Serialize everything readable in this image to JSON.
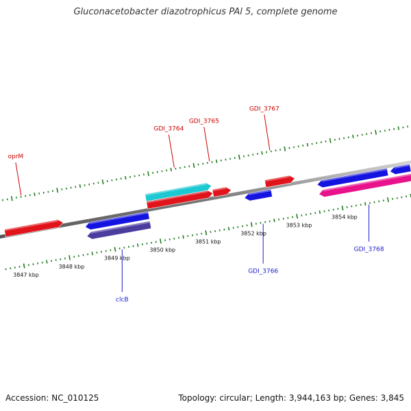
{
  "title": "Gluconacetobacter diazotrophicus PAl 5, complete genome",
  "accession": "Accession: NC_010125",
  "summary": "Topology: circular; Length: 3,944,163 bp; Genes: 3,845",
  "colors": {
    "backbone": "#8a8a8a",
    "tick_green": "#1f7a1f",
    "label_red": "#cc0000",
    "label_blue": "#1a1acc"
  },
  "chart_data": {
    "type": "genome-map",
    "unit": "kbp",
    "kbp_ticks": [
      {
        "kbp": 3847,
        "label": "3847 kbp"
      },
      {
        "kbp": 3848,
        "label": "3848 kbp"
      },
      {
        "kbp": 3849,
        "label": "3849 kbp"
      },
      {
        "kbp": 3850,
        "label": "3850 kbp"
      },
      {
        "kbp": 3851,
        "label": "3851 kbp"
      },
      {
        "kbp": 3852,
        "label": "3852 kbp"
      },
      {
        "kbp": 3853,
        "label": "3853 kbp"
      },
      {
        "kbp": 3854,
        "label": "3854 kbp"
      }
    ],
    "features": [
      {
        "name": "oprM",
        "strand": "+",
        "color": "#e0141a",
        "start_kbp": 3846.72,
        "end_kbp": 3848.0,
        "labeled": true
      },
      {
        "name": "GDI_3764",
        "strand": "+",
        "color": "#1cc8d2",
        "start_kbp": 3849.85,
        "end_kbp": 3851.3,
        "labeled": true
      },
      {
        "name": "",
        "strand": "+",
        "color": "#e0141a",
        "start_kbp": 3849.85,
        "end_kbp": 3851.3,
        "labeled": false
      },
      {
        "name": "GDI_3765",
        "strand": "+",
        "color": "#e0141a",
        "start_kbp": 3851.3,
        "end_kbp": 3851.7,
        "labeled": true
      },
      {
        "name": "GDI_3767",
        "strand": "+",
        "color": "#e0141a",
        "start_kbp": 3852.45,
        "end_kbp": 3853.1,
        "labeled": true
      },
      {
        "name": "",
        "strand": "-",
        "color": "#1414e0",
        "start_kbp": 3848.45,
        "end_kbp": 3849.85,
        "labeled": false
      },
      {
        "name": "clcB",
        "strand": "-",
        "color": "#4a3d9e",
        "start_kbp": 3848.45,
        "end_kbp": 3849.85,
        "labeled": true
      },
      {
        "name": "GDI_3766",
        "strand": "-",
        "color": "#1414e0",
        "start_kbp": 3851.95,
        "end_kbp": 3852.55,
        "labeled": true
      },
      {
        "name": "",
        "strand": "-",
        "color": "#1414e0",
        "start_kbp": 3853.55,
        "end_kbp": 3855.1,
        "labeled": false
      },
      {
        "name": "",
        "strand": "-",
        "color": "#1414e0",
        "start_kbp": 3855.15,
        "end_kbp": 3855.6,
        "labeled": false
      },
      {
        "name": "GDI_3768",
        "strand": "-",
        "color": "#e8128c",
        "start_kbp": 3853.55,
        "end_kbp": 3855.6,
        "labeled": true
      }
    ]
  }
}
